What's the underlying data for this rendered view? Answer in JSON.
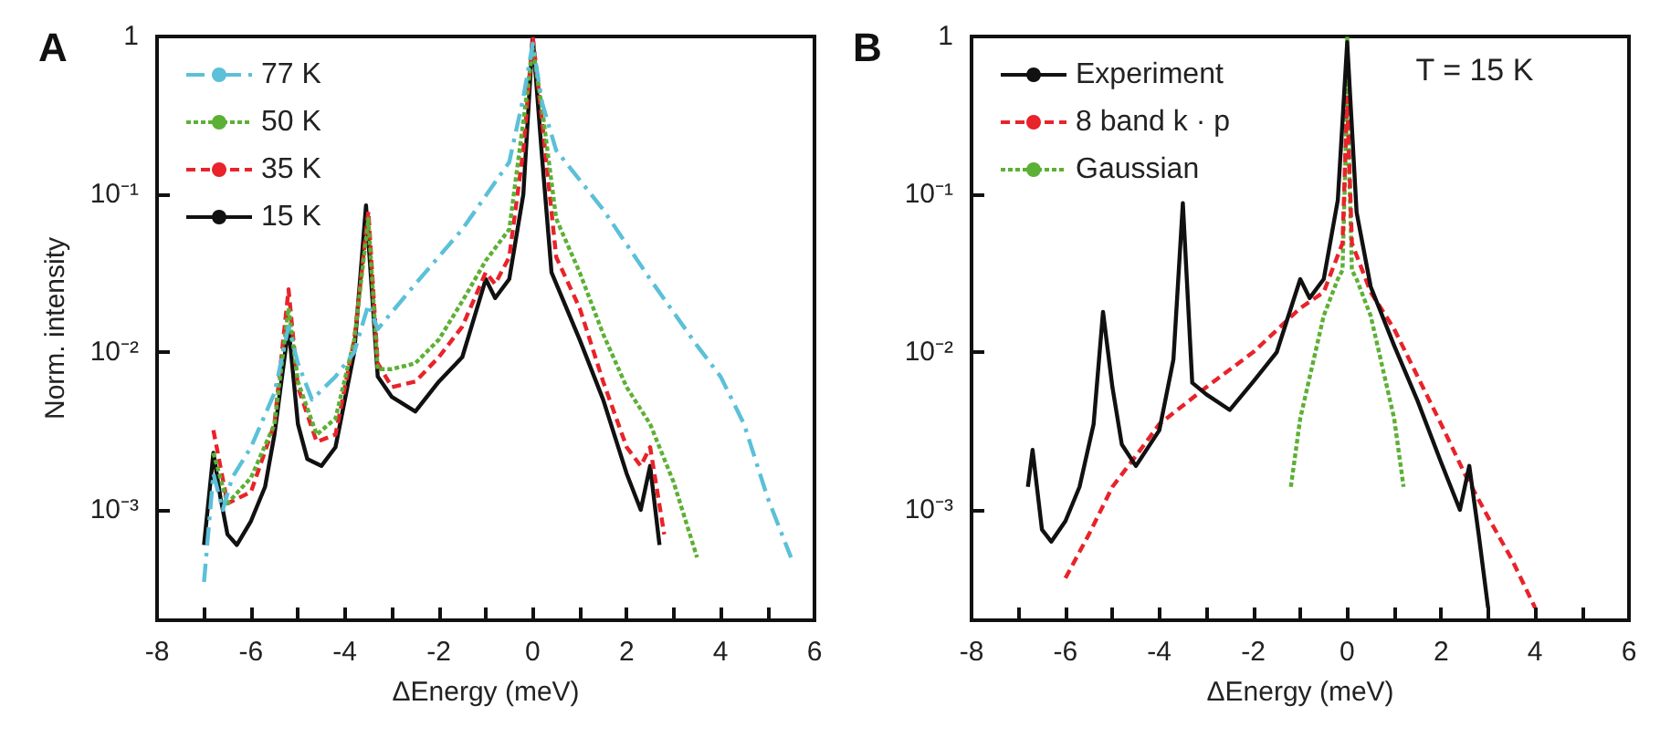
{
  "chart_data": [
    {
      "type": "line",
      "title": "A",
      "xlabel": "ΔEnergy (meV)",
      "ylabel": "Norm. intensity",
      "log": "y",
      "legend": "top left",
      "xlim": [
        -8,
        6
      ],
      "ylim": [
        0.0002,
        1
      ],
      "xticks": [
        -8,
        {
          "value": -7,
          "label": null
        },
        -6,
        {
          "value": -5,
          "label": null
        },
        -4,
        {
          "value": -3,
          "label": null
        },
        -2,
        {
          "value": -1,
          "label": null
        },
        0,
        {
          "value": 1,
          "label": null
        },
        2,
        {
          "value": 3,
          "label": null
        },
        4,
        {
          "value": 5,
          "label": null
        },
        6
      ],
      "yticks": [
        {
          "value": 0.001,
          "label": "10⁻³"
        },
        {
          "value": 0.01,
          "label": "10⁻²"
        },
        {
          "value": 0.1,
          "label": "10⁻¹"
        },
        1
      ],
      "series": [
        {
          "name": "77 K",
          "color": "#5bc0d8",
          "line_style": "dashdot",
          "x": [
            -7.0,
            -6.8,
            -6.6,
            -6.4,
            -6.0,
            -5.5,
            -5.2,
            -5.0,
            -4.7,
            -4.2,
            -3.8,
            -3.5,
            -3.3,
            -2.5,
            -1.5,
            -0.5,
            -0.2,
            0,
            0.2,
            0.5,
            1.5,
            2.5,
            3.5,
            4.0,
            4.5,
            5.0,
            5.5
          ],
          "values": [
            0.00035,
            0.0017,
            0.001,
            0.0016,
            0.0025,
            0.0055,
            0.0145,
            0.0085,
            0.005,
            0.007,
            0.01,
            0.02,
            0.014,
            0.027,
            0.06,
            0.16,
            0.41,
            0.9,
            0.38,
            0.19,
            0.08,
            0.029,
            0.011,
            0.007,
            0.0035,
            0.0012,
            0.0005
          ]
        },
        {
          "name": "50 K",
          "color": "#5cb035",
          "line_style": "dotted",
          "x": [
            -6.8,
            -6.5,
            -6.0,
            -5.5,
            -5.2,
            -5.0,
            -4.6,
            -4.2,
            -3.8,
            -3.5,
            -3.3,
            -3.0,
            -2.5,
            -2.0,
            -1.5,
            -1.0,
            -0.5,
            -0.2,
            0,
            0.2,
            0.5,
            1.0,
            1.5,
            2.0,
            2.5,
            3.0,
            3.5
          ],
          "values": [
            0.0023,
            0.0011,
            0.0016,
            0.0035,
            0.019,
            0.0065,
            0.003,
            0.0038,
            0.012,
            0.07,
            0.0078,
            0.0078,
            0.0085,
            0.012,
            0.021,
            0.038,
            0.06,
            0.29,
            0.84,
            0.35,
            0.07,
            0.032,
            0.013,
            0.006,
            0.0035,
            0.0015,
            0.0005
          ]
        },
        {
          "name": "35 K",
          "color": "#e8232a",
          "line_style": "dashed",
          "x": [
            -6.8,
            -6.5,
            -6.0,
            -5.5,
            -5.2,
            -5.0,
            -4.6,
            -4.2,
            -3.8,
            -3.5,
            -3.3,
            -3.0,
            -2.5,
            -2.0,
            -1.5,
            -1.0,
            -0.8,
            -0.5,
            -0.2,
            0,
            0.2,
            0.5,
            1.0,
            1.5,
            2.0,
            2.3,
            2.5,
            2.8
          ],
          "values": [
            0.0032,
            0.0011,
            0.0013,
            0.0035,
            0.025,
            0.006,
            0.0027,
            0.003,
            0.012,
            0.078,
            0.0085,
            0.006,
            0.0065,
            0.0093,
            0.0145,
            0.032,
            0.027,
            0.04,
            0.19,
            1,
            0.29,
            0.04,
            0.019,
            0.0065,
            0.0025,
            0.0019,
            0.0025,
            0.0007
          ]
        },
        {
          "name": "15 K",
          "color": "#111111",
          "line_style": "solid",
          "x": [
            -7.0,
            -6.8,
            -6.65,
            -6.5,
            -6.3,
            -6.0,
            -5.7,
            -5.5,
            -5.2,
            -5.0,
            -4.8,
            -4.5,
            -4.2,
            -3.8,
            -3.55,
            -3.3,
            -3.0,
            -2.5,
            -2.0,
            -1.5,
            -1.0,
            -0.8,
            -0.5,
            -0.2,
            0,
            0.2,
            0.4,
            1.0,
            1.5,
            2.0,
            2.3,
            2.5,
            2.7
          ],
          "values": [
            0.0006,
            0.0023,
            0.0012,
            0.0007,
            0.0006,
            0.00085,
            0.0014,
            0.003,
            0.0145,
            0.0035,
            0.0021,
            0.0019,
            0.0025,
            0.01,
            0.085,
            0.007,
            0.0052,
            0.0042,
            0.0065,
            0.0093,
            0.029,
            0.022,
            0.029,
            0.1,
            1,
            0.17,
            0.032,
            0.012,
            0.005,
            0.0017,
            0.001,
            0.0019,
            0.0006
          ]
        }
      ]
    },
    {
      "type": "line",
      "title": "B",
      "xlabel": "ΔEnergy (meV)",
      "log": "y",
      "legend": "top left",
      "xlim": [
        -8,
        6
      ],
      "ylim": [
        0.0002,
        1
      ],
      "annotations": [
        "T = 15 K"
      ],
      "xticks": [
        -8,
        {
          "value": -7,
          "label": null
        },
        -6,
        {
          "value": -5,
          "label": null
        },
        -4,
        {
          "value": -3,
          "label": null
        },
        -2,
        {
          "value": -1,
          "label": null
        },
        0,
        {
          "value": 1,
          "label": null
        },
        2,
        {
          "value": 3,
          "label": null
        },
        4,
        {
          "value": 5,
          "label": null
        },
        6
      ],
      "yticks": [
        {
          "value": 0.001,
          "label": "10⁻³"
        },
        {
          "value": 0.01,
          "label": "10⁻²"
        },
        {
          "value": 0.1,
          "label": "10⁻¹"
        },
        1
      ],
      "series": [
        {
          "name": "Experiment",
          "color": "#111111",
          "line_style": "solid",
          "x": [
            -6.8,
            -6.7,
            -6.5,
            -6.3,
            -6.0,
            -5.7,
            -5.4,
            -5.2,
            -5.0,
            -4.8,
            -4.5,
            -4.0,
            -3.7,
            -3.5,
            -3.3,
            -3.0,
            -2.5,
            -2.0,
            -1.5,
            -1.0,
            -0.8,
            -0.5,
            -0.2,
            0,
            0.2,
            0.5,
            1.0,
            1.5,
            2.0,
            2.4,
            2.6,
            2.8,
            3.0
          ],
          "values": [
            0.0014,
            0.0024,
            0.00075,
            0.00063,
            0.00085,
            0.0014,
            0.0035,
            0.018,
            0.006,
            0.0026,
            0.0019,
            0.0032,
            0.009,
            0.088,
            0.0064,
            0.0054,
            0.0043,
            0.0065,
            0.01,
            0.029,
            0.022,
            0.029,
            0.092,
            0.92,
            0.077,
            0.026,
            0.011,
            0.0049,
            0.002,
            0.001,
            0.0019,
            0.0007,
            0.00024
          ]
        },
        {
          "name": "8 band k · p",
          "color": "#e8232a",
          "line_style": "dashed",
          "x": [
            -6.0,
            -5.5,
            -5.0,
            -4.5,
            -4.0,
            -3.0,
            -2.0,
            -1.0,
            -0.5,
            -0.1,
            0,
            0.1,
            0.5,
            1.0,
            1.5,
            2.0,
            2.5,
            3.0,
            3.5,
            4.0
          ],
          "values": [
            0.00037,
            0.0007,
            0.0014,
            0.0022,
            0.0035,
            0.006,
            0.01,
            0.019,
            0.024,
            0.049,
            0.41,
            0.049,
            0.024,
            0.014,
            0.007,
            0.0035,
            0.0017,
            0.0009,
            0.00049,
            0.00024
          ]
        },
        {
          "name": "Gaussian",
          "color": "#5cb035",
          "line_style": "dotted",
          "x": [
            -1.2,
            -1.0,
            -0.5,
            -0.2,
            -0.1,
            -0.03,
            0,
            0.03,
            0.1,
            0.2,
            0.5,
            1.0,
            1.2
          ],
          "values": [
            0.0014,
            0.0038,
            0.017,
            0.029,
            0.033,
            0.2,
            1,
            0.2,
            0.033,
            0.029,
            0.017,
            0.0038,
            0.0014
          ]
        }
      ]
    }
  ]
}
